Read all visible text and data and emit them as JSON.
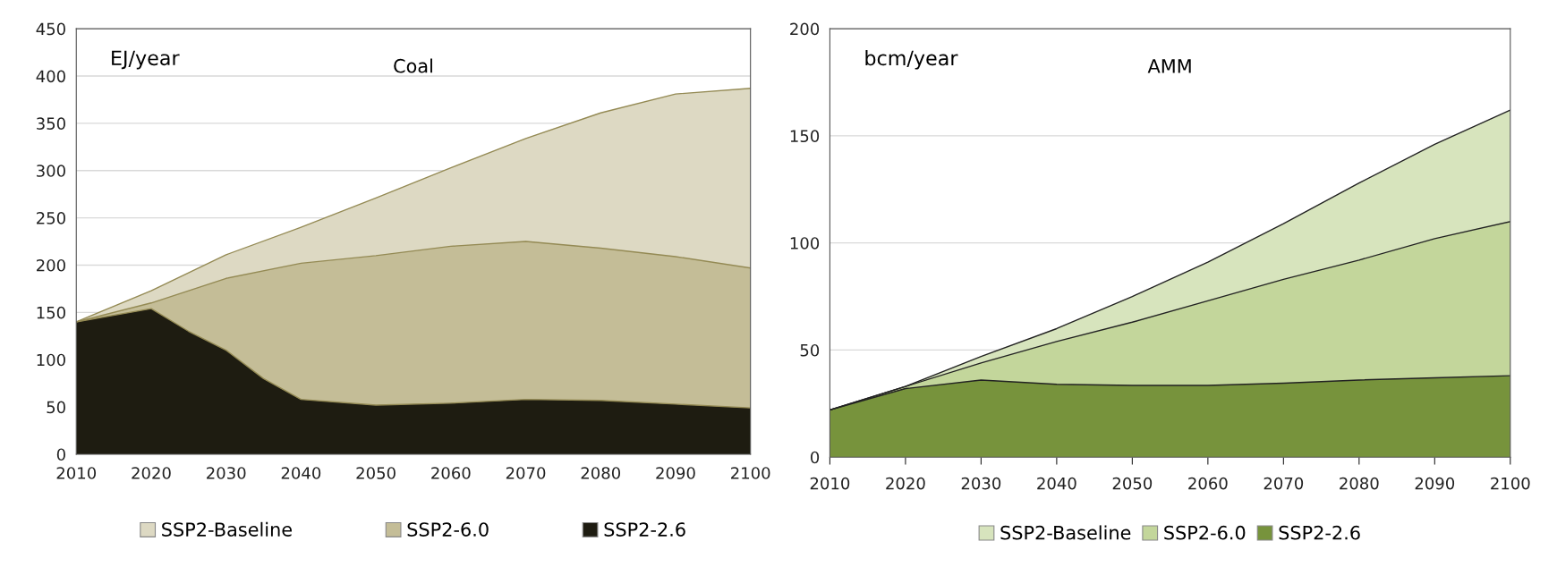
{
  "chart_data": [
    {
      "type": "area",
      "title": "Coal",
      "ylabel": "EJ/year",
      "ylim": [
        0,
        450
      ],
      "yticks": [
        0,
        50,
        100,
        150,
        200,
        250,
        300,
        350,
        400,
        450
      ],
      "xlim": [
        2010,
        2100
      ],
      "xticks": [
        2010,
        2020,
        2030,
        2040,
        2050,
        2060,
        2070,
        2080,
        2090,
        2100
      ],
      "grid": "y",
      "legend": "bottom",
      "series": [
        {
          "name": "SSP2-Baseline",
          "color": "#ddd9c3",
          "x": [
            2010,
            2020,
            2030,
            2040,
            2050,
            2060,
            2070,
            2080,
            2090,
            2100
          ],
          "values": [
            140,
            173,
            211,
            240,
            271,
            303,
            334,
            361,
            381,
            387
          ]
        },
        {
          "name": "SSP2-6.0",
          "color": "#c4bd97",
          "x": [
            2010,
            2020,
            2030,
            2040,
            2050,
            2060,
            2070,
            2080,
            2090,
            2100
          ],
          "values": [
            140,
            160,
            186,
            202,
            210,
            220,
            225,
            218,
            209,
            197
          ]
        },
        {
          "name": "SSP2-2.6",
          "color": "#1e1c11",
          "x": [
            2010,
            2020,
            2025,
            2030,
            2035,
            2040,
            2050,
            2060,
            2070,
            2080,
            2090,
            2100
          ],
          "values": [
            140,
            154,
            130,
            110,
            80,
            58,
            52,
            54,
            58,
            57,
            53,
            49
          ]
        }
      ]
    },
    {
      "type": "area",
      "title": "AMM",
      "ylabel": "bcm/year",
      "ylim": [
        0,
        200
      ],
      "yticks": [
        0,
        50,
        100,
        150,
        200
      ],
      "xlim": [
        2010,
        2100
      ],
      "xticks": [
        2010,
        2020,
        2030,
        2040,
        2050,
        2060,
        2070,
        2080,
        2090,
        2100
      ],
      "grid": "y",
      "legend": "bottom",
      "series": [
        {
          "name": "SSP2-Baseline",
          "color": "#d7e4bd",
          "x": [
            2010,
            2020,
            2030,
            2040,
            2050,
            2060,
            2070,
            2080,
            2090,
            2100
          ],
          "values": [
            22,
            33,
            47,
            60,
            75,
            91,
            109,
            128,
            146,
            162
          ]
        },
        {
          "name": "SSP2-6.0",
          "color": "#c3d69b",
          "x": [
            2010,
            2020,
            2030,
            2040,
            2050,
            2060,
            2070,
            2080,
            2090,
            2100
          ],
          "values": [
            22,
            33,
            44,
            54,
            63,
            73,
            83,
            92,
            102,
            110
          ]
        },
        {
          "name": "SSP2-2.6",
          "color": "#77933c",
          "x": [
            2010,
            2020,
            2030,
            2040,
            2050,
            2060,
            2070,
            2080,
            2090,
            2100
          ],
          "values": [
            22,
            32,
            36,
            34,
            33.5,
            33.5,
            34.5,
            36,
            37,
            38
          ]
        }
      ]
    }
  ]
}
